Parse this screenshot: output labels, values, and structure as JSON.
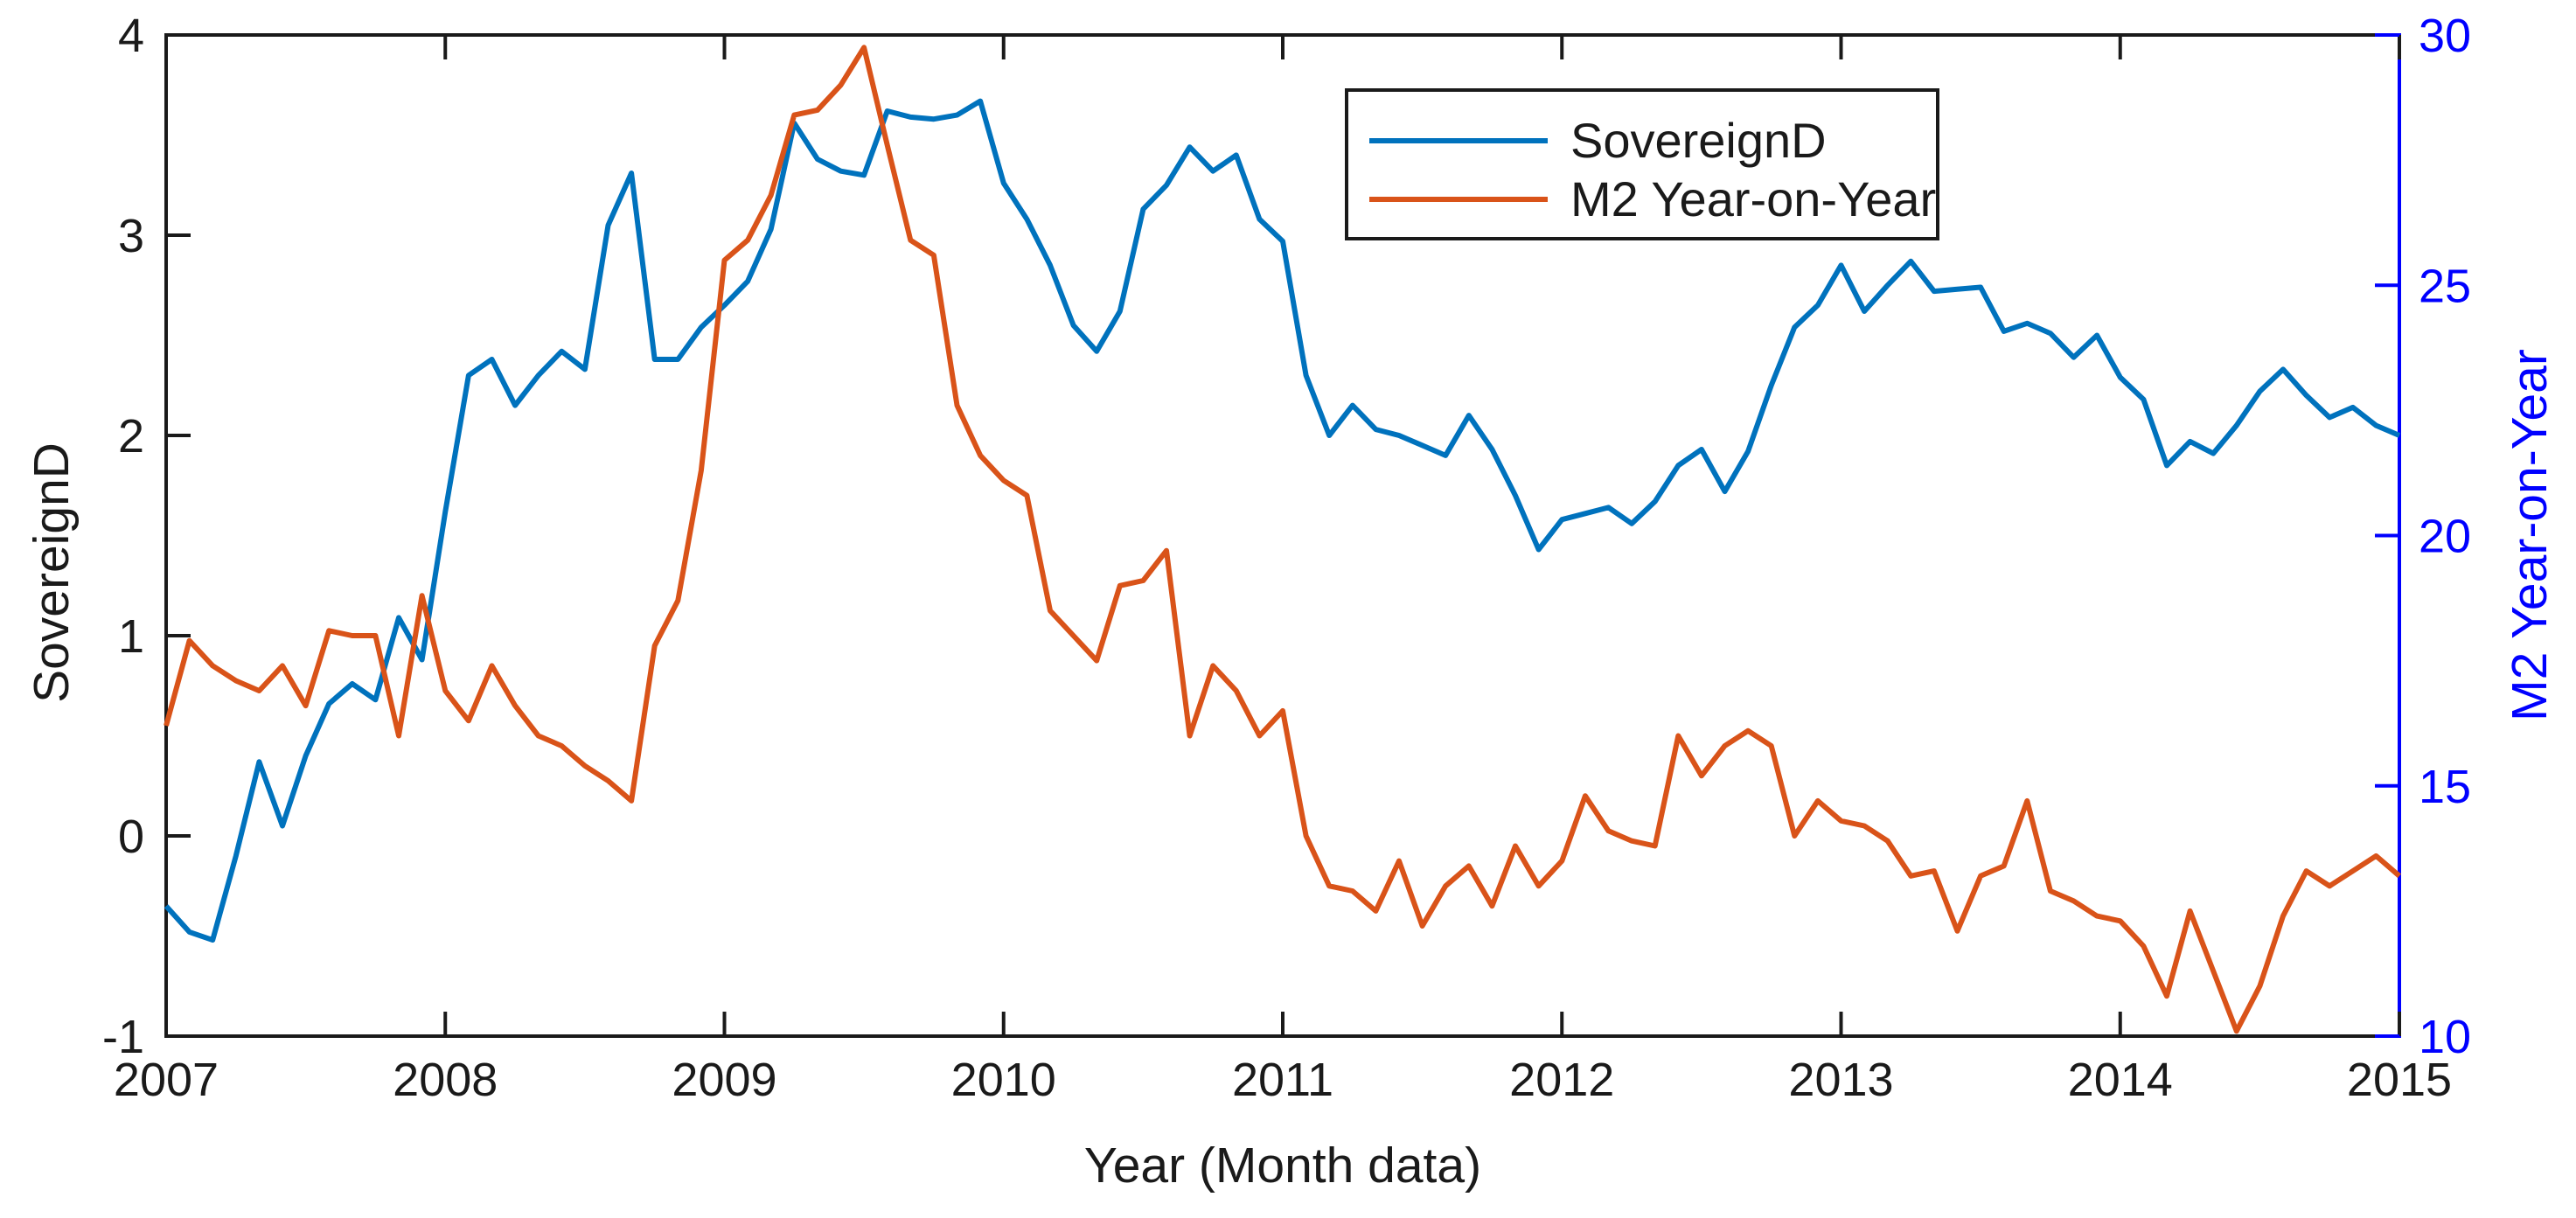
{
  "chart_data": {
    "type": "line",
    "title": "",
    "xlabel": "Year (Month data)",
    "ylabel_left": "SovereignD",
    "ylabel_right": "M2 Year-on-Year",
    "frequency": "monthly",
    "x_start": "2007-01",
    "x_end": "2015-01",
    "x_tick_labels": [
      "2007",
      "2008",
      "2009",
      "2010",
      "2011",
      "2012",
      "2013",
      "2014",
      "2015"
    ],
    "left_axis": {
      "min": -1,
      "max": 4,
      "ticks": [
        -1,
        0,
        1,
        2,
        3,
        4
      ],
      "color": "#1a1a1a"
    },
    "right_axis": {
      "min": 10,
      "max": 30,
      "ticks": [
        10,
        15,
        20,
        25,
        30
      ],
      "color": "#0000ff"
    },
    "grid": "off",
    "legend": {
      "position": "inside-top-right",
      "border": "#1a1a1a",
      "background": "#ffffff"
    },
    "series": [
      {
        "name": "SovereignD",
        "axis": "left",
        "color": "#0072BD",
        "values": [
          -0.35,
          -0.48,
          -0.52,
          -0.1,
          0.37,
          0.05,
          0.4,
          0.66,
          0.76,
          0.68,
          1.09,
          0.88,
          1.62,
          2.3,
          2.38,
          2.15,
          2.3,
          2.42,
          2.33,
          3.05,
          3.31,
          2.38,
          2.38,
          2.54,
          2.65,
          2.77,
          3.03,
          3.56,
          3.38,
          3.32,
          3.3,
          3.62,
          3.59,
          3.58,
          3.6,
          3.67,
          3.26,
          3.08,
          2.85,
          2.55,
          2.42,
          2.62,
          3.13,
          3.25,
          3.44,
          3.32,
          3.4,
          3.08,
          2.97,
          2.3,
          2.0,
          2.15,
          2.03,
          2.0,
          1.95,
          1.9,
          2.1,
          1.93,
          1.7,
          1.43,
          1.58,
          1.61,
          1.64,
          1.56,
          1.67,
          1.85,
          1.93,
          1.72,
          1.92,
          2.25,
          2.54,
          2.65,
          2.85,
          2.62,
          2.75,
          2.87,
          2.72,
          2.73,
          2.74,
          2.52,
          2.56,
          2.51,
          2.39,
          2.5,
          2.29,
          2.18,
          1.85,
          1.97,
          1.91,
          2.05,
          2.22,
          2.33,
          2.2,
          2.09,
          2.14,
          2.05,
          2.0
        ]
      },
      {
        "name": "M2 Year-on-Year",
        "axis": "right",
        "color": "#D95319",
        "values": [
          16.2,
          17.9,
          17.4,
          17.1,
          16.9,
          17.4,
          16.6,
          18.1,
          18.0,
          18.0,
          16.0,
          18.8,
          16.9,
          16.3,
          17.4,
          16.6,
          16.0,
          15.8,
          15.4,
          15.1,
          14.7,
          17.8,
          18.7,
          21.3,
          25.5,
          25.9,
          26.8,
          28.4,
          28.5,
          29.0,
          29.75,
          27.8,
          25.9,
          25.6,
          22.6,
          21.6,
          21.1,
          20.8,
          18.5,
          18.0,
          17.5,
          19.0,
          19.1,
          19.7,
          16.0,
          17.4,
          16.9,
          16.0,
          16.5,
          14.0,
          13.0,
          12.9,
          12.5,
          13.5,
          12.2,
          13.0,
          13.4,
          12.6,
          13.8,
          13.0,
          13.5,
          14.8,
          14.1,
          13.9,
          13.8,
          16.0,
          15.2,
          15.8,
          16.1,
          15.8,
          14.0,
          14.7,
          14.3,
          14.2,
          13.9,
          13.2,
          13.3,
          12.1,
          13.2,
          13.4,
          14.7,
          12.9,
          12.7,
          12.4,
          12.3,
          11.8,
          10.8,
          12.5,
          11.3,
          10.1,
          11.0,
          12.4,
          13.3,
          13.0,
          13.3,
          13.6,
          13.2
        ]
      }
    ]
  }
}
